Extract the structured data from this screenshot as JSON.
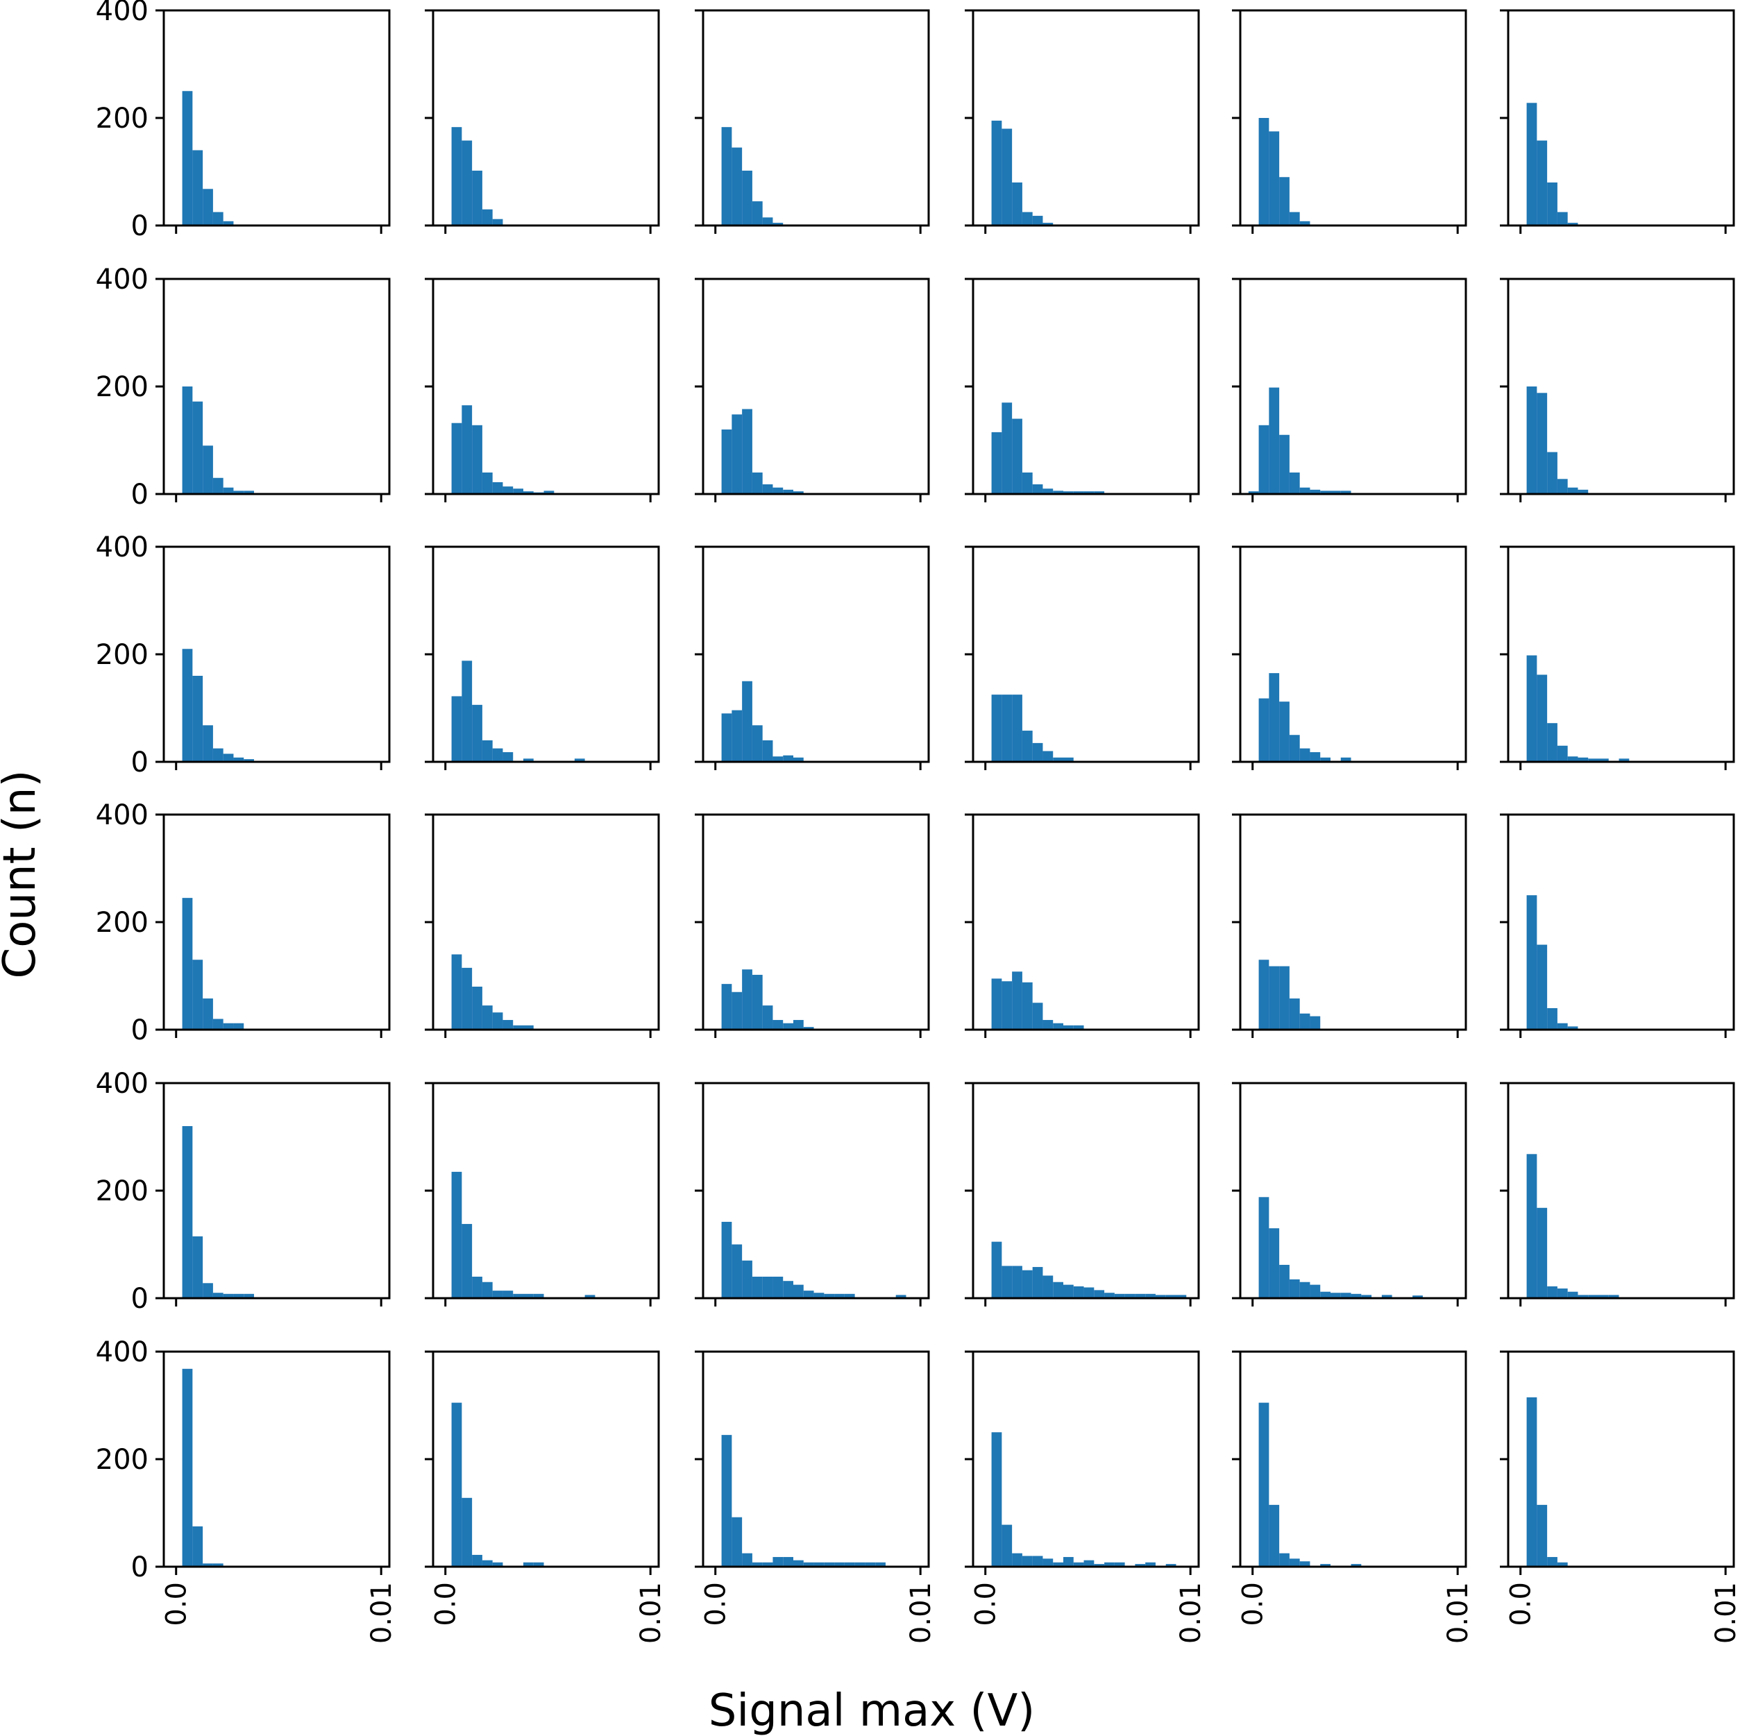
{
  "figure": {
    "xlabel": "Signal max (V)",
    "ylabel": "Count (n)",
    "bar_color": "#1f77b4",
    "axis_color": "#000000",
    "background": "#ffffff"
  },
  "chart_data": {
    "type": "bar",
    "layout": {
      "rows": 6,
      "cols": 6,
      "sharex": true,
      "sharey": true
    },
    "xlim": [
      -0.0006,
      0.0104
    ],
    "ylim": [
      0,
      400
    ],
    "bin_width": 0.0005,
    "xticks": [
      0.0,
      0.01
    ],
    "xtick_labels": [
      "0.0",
      "0.01"
    ],
    "yticks": [
      0,
      200,
      400
    ],
    "ytick_labels": [
      "0",
      "200",
      "400"
    ],
    "xlabel": "Signal max (V)",
    "ylabel": "Count (n)",
    "grid": false,
    "panels": [
      {
        "row": 1,
        "col": 1,
        "x0": 0.0003,
        "counts": [
          250,
          140,
          68,
          25,
          8
        ]
      },
      {
        "row": 1,
        "col": 2,
        "x0": 0.0003,
        "counts": [
          183,
          158,
          102,
          30,
          12
        ]
      },
      {
        "row": 1,
        "col": 3,
        "x0": 0.0003,
        "counts": [
          183,
          145,
          102,
          45,
          15,
          5
        ]
      },
      {
        "row": 1,
        "col": 4,
        "x0": 0.0003,
        "counts": [
          195,
          180,
          80,
          25,
          18,
          5
        ]
      },
      {
        "row": 1,
        "col": 5,
        "x0": 0.0003,
        "counts": [
          200,
          175,
          90,
          25,
          8
        ]
      },
      {
        "row": 1,
        "col": 6,
        "x0": 0.0003,
        "counts": [
          228,
          158,
          80,
          25,
          5
        ]
      },
      {
        "row": 2,
        "col": 1,
        "x0": 0.0003,
        "counts": [
          200,
          172,
          90,
          30,
          12,
          6,
          6
        ]
      },
      {
        "row": 2,
        "col": 2,
        "x0": 0.0003,
        "counts": [
          132,
          165,
          128,
          40,
          22,
          14,
          10,
          5,
          3,
          6
        ]
      },
      {
        "row": 2,
        "col": 3,
        "x0": 0.0003,
        "counts": [
          120,
          148,
          158,
          40,
          18,
          12,
          8,
          5
        ]
      },
      {
        "row": 2,
        "col": 4,
        "x0": 0.0003,
        "counts": [
          115,
          170,
          140,
          40,
          18,
          10,
          6,
          5,
          5,
          5,
          5
        ]
      },
      {
        "row": 2,
        "col": 5,
        "x0": -0.0002,
        "counts": [
          5,
          128,
          198,
          110,
          40,
          12,
          8,
          6,
          6,
          6
        ]
      },
      {
        "row": 2,
        "col": 6,
        "x0": 0.0003,
        "counts": [
          200,
          188,
          78,
          28,
          12,
          8
        ]
      },
      {
        "row": 3,
        "col": 1,
        "x0": 0.0003,
        "counts": [
          210,
          160,
          68,
          25,
          15,
          8,
          5
        ]
      },
      {
        "row": 3,
        "col": 2,
        "x0": 0.0003,
        "counts": [
          122,
          188,
          106,
          40,
          25,
          18,
          0,
          6,
          0,
          0,
          0,
          0,
          6
        ]
      },
      {
        "row": 3,
        "col": 3,
        "x0": 0.0003,
        "counts": [
          90,
          96,
          150,
          68,
          40,
          10,
          12,
          8
        ]
      },
      {
        "row": 3,
        "col": 4,
        "x0": 0.0003,
        "counts": [
          125,
          125,
          125,
          58,
          35,
          20,
          8,
          8
        ]
      },
      {
        "row": 3,
        "col": 5,
        "x0": 0.0003,
        "counts": [
          118,
          165,
          112,
          50,
          25,
          18,
          8,
          0,
          8
        ]
      },
      {
        "row": 3,
        "col": 6,
        "x0": 0.0003,
        "counts": [
          198,
          162,
          72,
          30,
          10,
          8,
          6,
          6,
          0,
          6
        ]
      },
      {
        "row": 4,
        "col": 1,
        "x0": 0.0003,
        "counts": [
          245,
          130,
          58,
          20,
          12,
          12
        ]
      },
      {
        "row": 4,
        "col": 2,
        "x0": 0.0003,
        "counts": [
          140,
          115,
          80,
          45,
          32,
          18,
          8,
          8
        ]
      },
      {
        "row": 4,
        "col": 3,
        "x0": 0.0003,
        "counts": [
          85,
          70,
          112,
          102,
          45,
          18,
          12,
          18,
          5
        ]
      },
      {
        "row": 4,
        "col": 4,
        "x0": 0.0003,
        "counts": [
          95,
          90,
          108,
          88,
          50,
          18,
          12,
          8,
          8
        ]
      },
      {
        "row": 4,
        "col": 5,
        "x0": 0.0003,
        "counts": [
          130,
          118,
          118,
          58,
          30,
          25
        ]
      },
      {
        "row": 4,
        "col": 6,
        "x0": 0.0003,
        "counts": [
          250,
          158,
          40,
          12,
          6
        ]
      },
      {
        "row": 5,
        "col": 1,
        "x0": 0.0003,
        "counts": [
          320,
          115,
          28,
          10,
          8,
          8,
          8
        ]
      },
      {
        "row": 5,
        "col": 2,
        "x0": 0.0003,
        "counts": [
          235,
          138,
          40,
          30,
          14,
          14,
          8,
          8,
          8,
          0,
          0,
          0,
          0,
          6
        ]
      },
      {
        "row": 5,
        "col": 3,
        "x0": 0.0003,
        "counts": [
          142,
          100,
          70,
          40,
          40,
          40,
          32,
          25,
          14,
          10,
          8,
          8,
          8,
          0,
          0,
          0,
          0,
          6
        ]
      },
      {
        "row": 5,
        "col": 4,
        "x0": 0.0003,
        "counts": [
          105,
          60,
          60,
          52,
          58,
          42,
          30,
          25,
          22,
          20,
          15,
          10,
          8,
          8,
          8,
          8,
          6,
          6,
          6
        ]
      },
      {
        "row": 5,
        "col": 5,
        "x0": 0.0003,
        "counts": [
          188,
          130,
          62,
          35,
          30,
          25,
          12,
          10,
          10,
          8,
          6,
          0,
          6,
          0,
          0,
          5
        ]
      },
      {
        "row": 5,
        "col": 6,
        "x0": 0.0003,
        "counts": [
          268,
          168,
          22,
          18,
          12,
          6,
          6,
          6,
          6
        ]
      },
      {
        "row": 6,
        "col": 1,
        "x0": 0.0003,
        "counts": [
          368,
          75,
          6,
          6
        ]
      },
      {
        "row": 6,
        "col": 2,
        "x0": 0.0003,
        "counts": [
          305,
          128,
          22,
          12,
          8,
          0,
          0,
          8,
          8
        ]
      },
      {
        "row": 6,
        "col": 3,
        "x0": 0.0003,
        "counts": [
          245,
          92,
          25,
          8,
          8,
          18,
          18,
          12,
          8,
          8,
          8,
          8,
          8,
          8,
          8,
          8
        ]
      },
      {
        "row": 6,
        "col": 4,
        "x0": 0.0003,
        "counts": [
          250,
          78,
          25,
          20,
          20,
          15,
          8,
          18,
          8,
          12,
          5,
          8,
          8,
          0,
          5,
          8,
          0,
          5
        ]
      },
      {
        "row": 6,
        "col": 5,
        "x0": 0.0003,
        "counts": [
          305,
          115,
          25,
          15,
          10,
          0,
          5,
          0,
          0,
          5
        ]
      },
      {
        "row": 6,
        "col": 6,
        "x0": 0.0003,
        "counts": [
          315,
          115,
          18,
          8
        ]
      }
    ]
  }
}
